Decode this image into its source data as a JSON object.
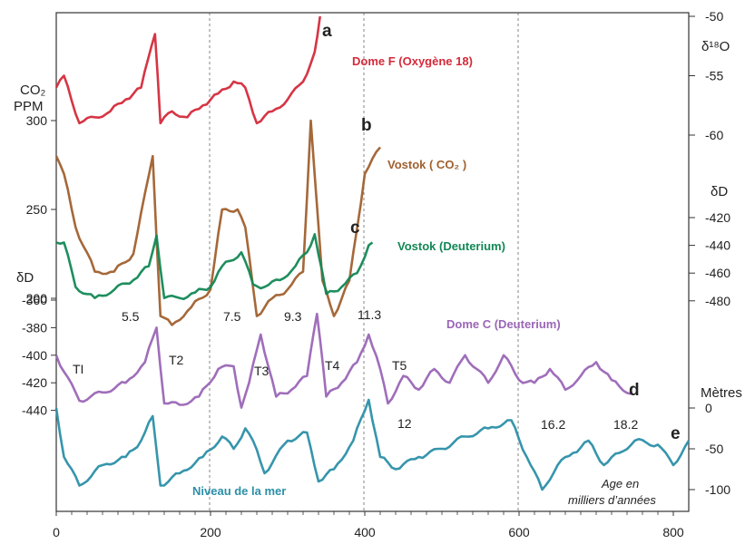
{
  "chart_data": {
    "type": "line",
    "x_axis": {
      "ticks": [
        0,
        200,
        400,
        600,
        800
      ],
      "range": [
        0,
        820
      ],
      "grid": "dashed verticals at 200, 400, 600"
    },
    "left_axes": [
      {
        "id": "co2",
        "title_line1": "CO₂",
        "title_line2": "PPM",
        "ticks": [
          300,
          250,
          200
        ]
      },
      {
        "id": "dd_left",
        "title": "δD",
        "ticks": [
          -360,
          -380,
          -400,
          -420,
          -440
        ]
      }
    ],
    "right_axes": [
      {
        "id": "o18",
        "title": "δ¹⁸O",
        "ticks": [
          -50,
          -55,
          -60
        ]
      },
      {
        "id": "dd_right",
        "title": "δD",
        "ticks": [
          -420,
          -440,
          -460,
          -480
        ]
      },
      {
        "id": "sea",
        "title": "Mètres",
        "ticks": [
          0,
          -50,
          -100
        ]
      }
    ],
    "series": [
      {
        "id": "a",
        "letter": "a",
        "name": "Dome F (Oxygène 18)",
        "color": "#d42a3a",
        "x": [
          0,
          10,
          30,
          50,
          70,
          90,
          110,
          128,
          135,
          150,
          170,
          190,
          210,
          230,
          245,
          260,
          280,
          300,
          320,
          335,
          342
        ],
        "y": [
          -56,
          -55,
          -59,
          -58.5,
          -58,
          -57,
          -56,
          -51.5,
          -59,
          -58,
          -58.5,
          -57.5,
          -56.5,
          -55.5,
          -56,
          -59,
          -58,
          -57,
          -55.5,
          -53,
          -50
        ]
      },
      {
        "id": "b",
        "letter": "b",
        "name": "Vostok ( CO₂ )",
        "color": "#a0602e",
        "x": [
          0,
          10,
          25,
          50,
          75,
          100,
          125,
          135,
          150,
          175,
          200,
          215,
          235,
          245,
          260,
          280,
          300,
          320,
          330,
          345,
          360,
          380,
          400,
          420
        ],
        "y": [
          280,
          270,
          240,
          215,
          215,
          225,
          280,
          190,
          185,
          195,
          205,
          250,
          250,
          240,
          190,
          200,
          205,
          215,
          300,
          210,
          190,
          210,
          270,
          285
        ]
      },
      {
        "id": "c",
        "letter": "c",
        "name": "Vostok (Deuterium)",
        "color": "#128855",
        "x": [
          0,
          10,
          25,
          50,
          75,
          100,
          120,
          130,
          140,
          160,
          180,
          200,
          215,
          240,
          255,
          270,
          290,
          310,
          325,
          335,
          350,
          370,
          390,
          405,
          410
        ],
        "y": [
          -438,
          -438,
          -470,
          -478,
          -472,
          -465,
          -455,
          -433,
          -478,
          -478,
          -474,
          -470,
          -455,
          -445,
          -468,
          -470,
          -465,
          -455,
          -445,
          -432,
          -475,
          -470,
          -460,
          -440,
          -438
        ]
      },
      {
        "id": "d",
        "letter": "d",
        "name": "Dome C (Deuterium)",
        "color": "#9a66b6",
        "x": [
          0,
          10,
          30,
          60,
          90,
          115,
          130,
          140,
          160,
          185,
          210,
          230,
          240,
          250,
          265,
          285,
          305,
          325,
          338,
          350,
          370,
          390,
          405,
          420,
          430,
          450,
          470,
          490,
          510,
          530,
          560,
          580,
          600,
          620,
          640,
          660,
          680,
          700,
          720,
          745
        ],
        "y": [
          -400,
          -412,
          -433,
          -427,
          -420,
          -405,
          -380,
          -435,
          -436,
          -430,
          -410,
          -408,
          -438,
          -420,
          -385,
          -430,
          -425,
          -415,
          -370,
          -430,
          -420,
          -405,
          -385,
          -410,
          -435,
          -415,
          -425,
          -410,
          -420,
          -400,
          -420,
          -400,
          -418,
          -420,
          -410,
          -425,
          -415,
          -405,
          -418,
          -428
        ]
      },
      {
        "id": "e",
        "letter": "e",
        "name": "Niveau de la mer",
        "color": "#2b8fa8",
        "x": [
          0,
          10,
          30,
          60,
          90,
          110,
          125,
          135,
          160,
          190,
          215,
          230,
          245,
          255,
          270,
          300,
          325,
          340,
          360,
          385,
          405,
          420,
          440,
          470,
          500,
          530,
          560,
          590,
          610,
          630,
          650,
          670,
          690,
          710,
          730,
          750,
          780,
          800,
          820
        ],
        "y": [
          0,
          -60,
          -95,
          -70,
          -60,
          -40,
          -10,
          -95,
          -80,
          -60,
          -35,
          -50,
          -25,
          -40,
          -80,
          -40,
          -30,
          -90,
          -75,
          -40,
          10,
          -60,
          -75,
          -60,
          -50,
          -35,
          -25,
          -15,
          -60,
          -100,
          -70,
          -55,
          -40,
          -70,
          -55,
          -40,
          -45,
          -70,
          -40
        ]
      }
    ],
    "annotations": {
      "events": [
        "5.5",
        "7.5",
        "9.3",
        "11.3",
        "12",
        "16.2",
        "18.2"
      ],
      "terminations": [
        "TI",
        "T2",
        "T3",
        "T4",
        "T5"
      ],
      "note_line1": "Age en",
      "note_line2": "milliers d’années"
    }
  }
}
